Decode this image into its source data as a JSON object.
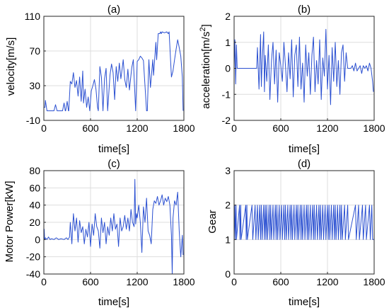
{
  "chart_data": [
    {
      "panel": "(a)",
      "type": "line",
      "title": "(a)",
      "xlabel": "time[s]",
      "ylabel": "velocity[m/s]",
      "xlim": [
        0,
        1800
      ],
      "ylim": [
        -10,
        110
      ],
      "xticks": [
        0,
        600,
        1200,
        1800
      ],
      "yticks": [
        -10,
        30,
        70,
        110
      ],
      "grid": true,
      "color": "#2b50d1",
      "series": [
        {
          "x": [
            0,
            15,
            20,
            40,
            70,
            100,
            130,
            150,
            170,
            200,
            220,
            240,
            260,
            275,
            280,
            300,
            315,
            320,
            340,
            360,
            380,
            400,
            420,
            440,
            460,
            480,
            500,
            510,
            530,
            550,
            570,
            590,
            610,
            630,
            650,
            670,
            690,
            700,
            720,
            740,
            760,
            780,
            800,
            820,
            850,
            870,
            890,
            910,
            930,
            950,
            970,
            990,
            1000,
            1020,
            1040,
            1060,
            1080,
            1100,
            1130,
            1150,
            1180,
            1200,
            1220,
            1240,
            1260,
            1280,
            1300,
            1320,
            1330,
            1350,
            1370,
            1400,
            1410,
            1440,
            1450,
            1470,
            1490,
            1500,
            1510,
            1520,
            1550,
            1580,
            1600,
            1610,
            1640,
            1660,
            1680,
            1700,
            1720,
            1740,
            1760,
            1780,
            1790
          ],
          "y": [
            5,
            5,
            13,
            1,
            1,
            1,
            1,
            8,
            1,
            1,
            1,
            1,
            10,
            1,
            1,
            12,
            1,
            1,
            35,
            32,
            45,
            28,
            36,
            18,
            40,
            12,
            47,
            10,
            26,
            5,
            17,
            1,
            24,
            30,
            37,
            26,
            5,
            1,
            52,
            40,
            1,
            38,
            50,
            1,
            42,
            55,
            45,
            14,
            52,
            35,
            56,
            38,
            45,
            60,
            37,
            28,
            49,
            25,
            51,
            60,
            1,
            58,
            60,
            64,
            62,
            59,
            30,
            1,
            1,
            60,
            28,
            60,
            42,
            80,
            60,
            90,
            90,
            92,
            90,
            92,
            91,
            92,
            90,
            92,
            40,
            47,
            60,
            72,
            83,
            74,
            64,
            40,
            1
          ]
        }
      ]
    },
    {
      "panel": "(b)",
      "type": "line",
      "title": "(b)",
      "xlabel": "time[s]",
      "ylabel": "acceleration[m/s2]",
      "xlim": [
        0,
        1800
      ],
      "ylim": [
        -2,
        2
      ],
      "xticks": [
        0,
        600,
        1200,
        1800
      ],
      "yticks": [
        -2,
        -1,
        0,
        1,
        2
      ],
      "grid": true,
      "color": "#2b50d1",
      "series": [
        {
          "x": [
            0,
            10,
            20,
            30,
            40,
            60,
            80,
            100,
            120,
            140,
            170,
            200,
            230,
            260,
            280,
            290,
            300,
            320,
            340,
            350,
            360,
            380,
            390,
            400,
            420,
            440,
            460,
            480,
            500,
            520,
            540,
            560,
            580,
            600,
            620,
            640,
            660,
            680,
            700,
            720,
            740,
            760,
            780,
            800,
            820,
            840,
            860,
            880,
            900,
            920,
            940,
            960,
            980,
            1000,
            1020,
            1040,
            1060,
            1080,
            1100,
            1120,
            1140,
            1160,
            1180,
            1200,
            1220,
            1240,
            1260,
            1280,
            1300,
            1320,
            1340,
            1360,
            1380,
            1400,
            1420,
            1440,
            1460,
            1480,
            1500,
            1520,
            1540,
            1560,
            1580,
            1600,
            1620,
            1640,
            1660,
            1680,
            1700,
            1720,
            1740,
            1760,
            1780,
            1790
          ],
          "y": [
            0,
            1.1,
            -0.6,
            0.9,
            0,
            0,
            0,
            0,
            0,
            0,
            0,
            0,
            0,
            0,
            0,
            0,
            0.8,
            -0.8,
            1.3,
            -0.7,
            0.2,
            1.4,
            -0.9,
            0.5,
            -0.5,
            0.9,
            -1.2,
            0.3,
            1.0,
            -0.6,
            0.7,
            -1.3,
            0.6,
            0.1,
            -0.5,
            1.0,
            0.1,
            -0.9,
            0.6,
            -0.4,
            1.1,
            -1.1,
            0.5,
            0.9,
            -0.7,
            1.2,
            -0.8,
            0.2,
            -1.3,
            0.9,
            -0.3,
            0.6,
            -1.0,
            0.5,
            1.2,
            -0.9,
            0.3,
            -0.6,
            1.1,
            -1.2,
            0.4,
            -0.3,
            1.5,
            -0.8,
            0.5,
            -1.4,
            0.8,
            -0.5,
            1.0,
            -0.7,
            0.3,
            -1.0,
            0.6,
            0.9,
            -0.5,
            0.6,
            0,
            0,
            0,
            0.1,
            -0.1,
            0.2,
            -0.1,
            0,
            0.1,
            -0.2,
            0.1,
            0,
            0.1,
            -0.1,
            0.2,
            0,
            -0.5,
            -0.9
          ]
        }
      ]
    },
    {
      "panel": "(c)",
      "type": "line",
      "title": "(c)",
      "xlabel": "time[s]",
      "ylabel": "Motor Power[kW]",
      "xlim": [
        0,
        1800
      ],
      "ylim": [
        -40,
        80
      ],
      "xticks": [
        0,
        600,
        1200,
        1800
      ],
      "yticks": [
        -40,
        -20,
        0,
        20,
        40,
        60,
        80
      ],
      "grid": true,
      "color": "#2b50d1",
      "series": [
        {
          "x": [
            0,
            5,
            10,
            20,
            40,
            60,
            80,
            100,
            130,
            160,
            190,
            220,
            260,
            290,
            310,
            330,
            340,
            360,
            380,
            400,
            420,
            440,
            460,
            480,
            500,
            520,
            540,
            560,
            580,
            600,
            620,
            640,
            660,
            680,
            700,
            720,
            740,
            760,
            780,
            800,
            820,
            840,
            860,
            880,
            900,
            920,
            940,
            960,
            980,
            1000,
            1020,
            1040,
            1060,
            1080,
            1100,
            1120,
            1140,
            1160,
            1170,
            1180,
            1190,
            1200,
            1220,
            1240,
            1260,
            1280,
            1300,
            1320,
            1340,
            1360,
            1380,
            1400,
            1420,
            1440,
            1460,
            1480,
            1500,
            1520,
            1540,
            1560,
            1580,
            1600,
            1620,
            1640,
            1650,
            1660,
            1680,
            1700,
            1720,
            1740,
            1760,
            1780,
            1790
          ],
          "y": [
            0,
            12,
            0,
            2,
            0,
            3,
            0,
            1,
            0,
            2,
            0,
            1,
            0,
            2,
            0,
            3,
            20,
            -5,
            30,
            10,
            25,
            -3,
            22,
            8,
            15,
            -5,
            12,
            3,
            20,
            -8,
            18,
            5,
            30,
            15,
            10,
            -10,
            25,
            8,
            20,
            -5,
            15,
            5,
            25,
            10,
            30,
            12,
            18,
            -8,
            25,
            10,
            15,
            28,
            12,
            25,
            10,
            35,
            20,
            15,
            70,
            18,
            30,
            25,
            40,
            20,
            -15,
            38,
            20,
            48,
            10,
            5,
            -5,
            35,
            45,
            42,
            50,
            40,
            45,
            52,
            40,
            48,
            44,
            50,
            40,
            5,
            -40,
            25,
            45,
            40,
            55,
            10,
            -20,
            5,
            -18
          ]
        }
      ]
    },
    {
      "panel": "(d)",
      "type": "line",
      "title": "(d)",
      "xlabel": "time[s]",
      "ylabel": "Gear",
      "xlim": [
        0,
        1800
      ],
      "ylim": [
        0,
        3
      ],
      "xticks": [
        0,
        600,
        1200,
        1800
      ],
      "yticks": [
        0,
        1,
        2,
        3
      ],
      "grid": true,
      "color": "#2b50d1",
      "series": [
        {
          "x": [
            0,
            10,
            15,
            25,
            30,
            70,
            75,
            85,
            90,
            150,
            155,
            165,
            170,
            230,
            240,
            270,
            280,
            300,
            310,
            330,
            340,
            350,
            360,
            380,
            390,
            400,
            410,
            420,
            430,
            450,
            460,
            470,
            480,
            500,
            510,
            530,
            540,
            550,
            560,
            580,
            590,
            610,
            620,
            640,
            650,
            660,
            670,
            690,
            700,
            720,
            730,
            740,
            750,
            770,
            780,
            800,
            810,
            820,
            830,
            850,
            860,
            870,
            880,
            900,
            910,
            930,
            940,
            950,
            960,
            980,
            990,
            1010,
            1020,
            1030,
            1040,
            1060,
            1070,
            1090,
            1100,
            1110,
            1120,
            1140,
            1150,
            1170,
            1180,
            1200,
            1210,
            1220,
            1230,
            1250,
            1260,
            1280,
            1290,
            1300,
            1310,
            1330,
            1340,
            1360,
            1370,
            1380,
            1390,
            1420,
            1430,
            1460,
            1470,
            1560,
            1570,
            1600,
            1610,
            1650,
            1660,
            1690,
            1700,
            1740,
            1750,
            1770,
            1780,
            1800
          ],
          "y": [
            1,
            2,
            1,
            2,
            1,
            2,
            1,
            2,
            1,
            2,
            1,
            2,
            1,
            2,
            1,
            2,
            1,
            2,
            1,
            2,
            1,
            2,
            1,
            2,
            1,
            2,
            1,
            2,
            1,
            2,
            1,
            2,
            1,
            2,
            1,
            2,
            1,
            2,
            1,
            2,
            1,
            2,
            1,
            2,
            1,
            2,
            1,
            2,
            1,
            2,
            1,
            2,
            1,
            2,
            1,
            2,
            1,
            2,
            1,
            2,
            1,
            2,
            1,
            2,
            1,
            2,
            1,
            2,
            1,
            2,
            1,
            2,
            1,
            2,
            1,
            2,
            1,
            2,
            1,
            2,
            1,
            2,
            1,
            2,
            1,
            2,
            1,
            2,
            1,
            2,
            1,
            2,
            1,
            2,
            1,
            2,
            1,
            2,
            1,
            2,
            1,
            2,
            1,
            2,
            1,
            2,
            1,
            2,
            1,
            2,
            1,
            2,
            1,
            2,
            1,
            2,
            1,
            1
          ]
        }
      ]
    }
  ]
}
